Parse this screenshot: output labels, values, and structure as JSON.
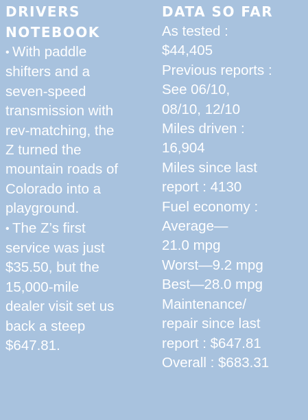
{
  "notebook": {
    "heading_line1": "DRIVERS",
    "heading_line2": "NOTEBOOK",
    "bullet_glyph": "•",
    "paragraph1_lines": [
      "With paddle",
      "shifters and a",
      "seven-speed",
      "transmission with",
      "rev-matching, the",
      "Z turned the",
      "mountain roads of",
      "Colorado into a",
      "playground."
    ],
    "paragraph2_lines": [
      "The Z’s first",
      "service was just",
      "$35.50, but the",
      "15,000-mile",
      "dealer visit set us",
      "back a steep",
      "$647.81."
    ]
  },
  "data_so_far": {
    "heading": "DATA SO FAR",
    "lines": [
      "As tested :",
      "$44,405",
      "Previous reports :",
      "See 06/10,",
      "08/10, 12/10",
      "Miles driven :",
      "16,904",
      "Miles since last",
      "report : 4130",
      "Fuel economy :",
      "Average—",
      "21.0 mpg",
      "Worst—9.2 mpg",
      "Best—28.0 mpg",
      "Maintenance/",
      "repair since last",
      "report : $647.81",
      "Overall : $683.31"
    ]
  }
}
